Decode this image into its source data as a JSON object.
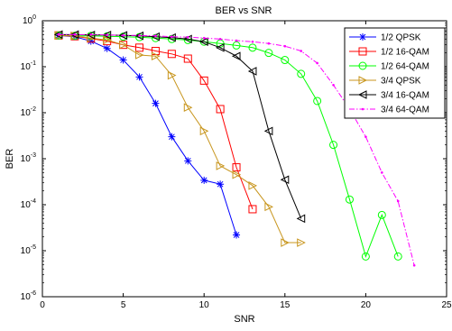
{
  "chart_data": {
    "type": "line",
    "title": "BER vs SNR",
    "xlabel": "SNR",
    "ylabel": "BER",
    "xlim": [
      0,
      25
    ],
    "ylim": [
      1e-06,
      1
    ],
    "yscale": "log",
    "x_ticks": [
      "0",
      "5",
      "10",
      "15",
      "20",
      "25"
    ],
    "grid": false,
    "legend_position": "top-right",
    "series": [
      {
        "name": "1/2 QPSK",
        "color": "#0000ff",
        "marker": "asterisk",
        "line": "solid",
        "x": [
          1,
          2,
          3,
          4,
          5,
          6,
          7,
          8,
          9,
          10,
          11,
          12
        ],
        "y": [
          0.48,
          0.45,
          0.36,
          0.25,
          0.14,
          0.06,
          0.016,
          0.003,
          0.0009,
          0.00034,
          0.00028,
          2.2e-05
        ]
      },
      {
        "name": "1/2 16-QAM",
        "color": "#ff0000",
        "marker": "square",
        "line": "solid",
        "x": [
          1,
          2,
          3,
          4,
          5,
          6,
          7,
          8,
          9,
          10,
          11,
          12,
          13
        ],
        "y": [
          0.48,
          0.46,
          0.41,
          0.36,
          0.3,
          0.26,
          0.22,
          0.19,
          0.15,
          0.05,
          0.012,
          0.00065,
          8e-05
        ]
      },
      {
        "name": "1/2 64-QAM",
        "color": "#00ff00",
        "marker": "circle",
        "line": "solid",
        "x": [
          1,
          2,
          3,
          4,
          5,
          6,
          7,
          8,
          9,
          10,
          11,
          12,
          13,
          14,
          15,
          16,
          17,
          18,
          19,
          20,
          21,
          22
        ],
        "y": [
          0.48,
          0.47,
          0.47,
          0.46,
          0.45,
          0.44,
          0.42,
          0.4,
          0.38,
          0.35,
          0.32,
          0.29,
          0.26,
          0.2,
          0.14,
          0.07,
          0.018,
          0.002,
          0.00013,
          7.5e-06,
          6e-05,
          7.5e-06
        ]
      },
      {
        "name": "3/4 QPSK",
        "color": "#c8961e",
        "marker": "triangle-right",
        "line": "solid",
        "x": [
          1,
          2,
          3,
          4,
          5,
          6,
          7,
          8,
          9,
          10,
          11,
          12,
          13,
          14,
          15,
          16
        ],
        "y": [
          0.48,
          0.47,
          0.42,
          0.38,
          0.3,
          0.18,
          0.17,
          0.065,
          0.013,
          0.004,
          0.0007,
          0.00045,
          0.00026,
          9e-05,
          1.5e-05,
          1.5e-05
        ]
      },
      {
        "name": "3/4 16-QAM",
        "color": "#000000",
        "marker": "triangle-left",
        "line": "solid",
        "x": [
          1,
          2,
          3,
          4,
          5,
          6,
          7,
          8,
          9,
          10,
          11,
          12,
          13,
          14,
          15,
          16
        ],
        "y": [
          0.5,
          0.5,
          0.49,
          0.49,
          0.48,
          0.47,
          0.45,
          0.43,
          0.4,
          0.35,
          0.26,
          0.17,
          0.08,
          0.004,
          0.00035,
          5e-05
        ]
      },
      {
        "name": "3/4 64-QAM",
        "color": "#ff00ff",
        "marker": "dot",
        "line": "dashdot",
        "x": [
          1,
          2,
          3,
          4,
          5,
          6,
          7,
          8,
          9,
          10,
          11,
          12,
          13,
          14,
          15,
          16,
          17,
          18,
          19,
          20,
          21,
          22,
          23
        ],
        "y": [
          0.5,
          0.5,
          0.5,
          0.49,
          0.48,
          0.48,
          0.47,
          0.45,
          0.44,
          0.42,
          0.4,
          0.37,
          0.35,
          0.32,
          0.28,
          0.22,
          0.12,
          0.04,
          0.012,
          0.003,
          0.0005,
          0.00012,
          4.8e-06
        ]
      }
    ]
  }
}
